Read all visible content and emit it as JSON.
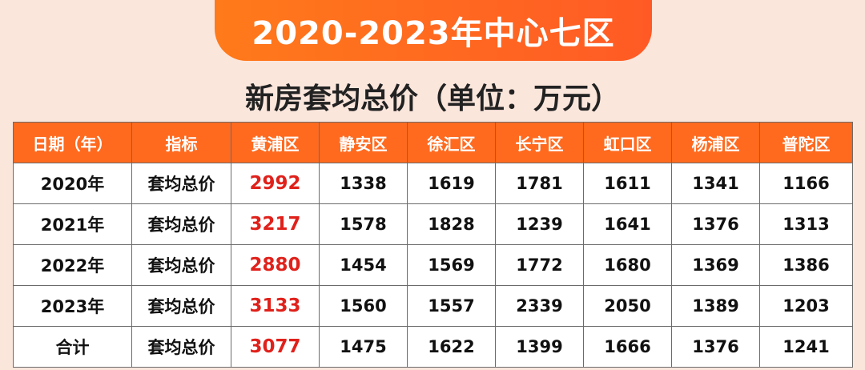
{
  "title": "2020-2023年中心七区",
  "subtitle": "新房套均总价（单位：万元）",
  "colors": {
    "accent": "#ff6a1f",
    "highlight": "#e0211b",
    "background": "#fbe6dc"
  },
  "table": {
    "headers": [
      "日期（年）",
      "指标",
      "黄浦区",
      "静安区",
      "徐汇区",
      "长宁区",
      "虹口区",
      "杨浦区",
      "普陀区"
    ],
    "rows": [
      [
        "2020年",
        "套均总价",
        "2992",
        "1338",
        "1619",
        "1781",
        "1611",
        "1341",
        "1166"
      ],
      [
        "2021年",
        "套均总价",
        "3217",
        "1578",
        "1828",
        "1239",
        "1641",
        "1376",
        "1313"
      ],
      [
        "2022年",
        "套均总价",
        "2880",
        "1454",
        "1569",
        "1772",
        "1680",
        "1369",
        "1386"
      ],
      [
        "2023年",
        "套均总价",
        "3133",
        "1560",
        "1557",
        "2339",
        "2050",
        "1389",
        "1203"
      ],
      [
        "合计",
        "套均总价",
        "3077",
        "1475",
        "1622",
        "1399",
        "1666",
        "1376",
        "1241"
      ]
    ]
  }
}
